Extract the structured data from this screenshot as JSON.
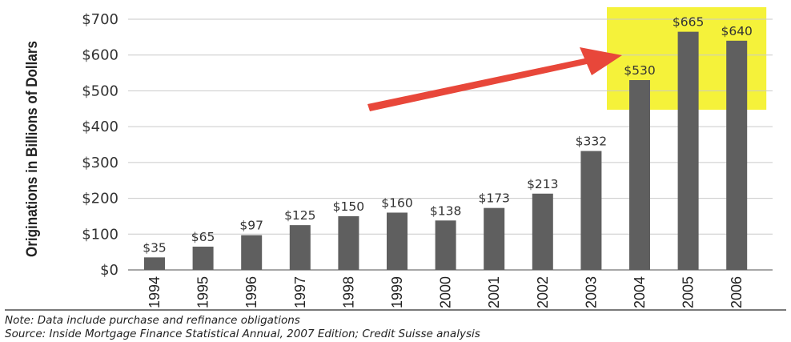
{
  "chart_data": {
    "type": "bar",
    "ylabel": "Originations in Billions of Dollars",
    "categories": [
      "1994",
      "1995",
      "1996",
      "1997",
      "1998",
      "1999",
      "2000",
      "2001",
      "2002",
      "2003",
      "2004",
      "2005",
      "2006"
    ],
    "values": [
      35,
      65,
      97,
      125,
      150,
      160,
      138,
      173,
      213,
      332,
      530,
      665,
      640
    ],
    "data_labels": [
      "$35",
      "$65",
      "$97",
      "$125",
      "$150",
      "$160",
      "$138",
      "$173",
      "$213",
      "$332",
      "$530",
      "$665",
      "$640"
    ],
    "ylim": [
      0,
      700
    ],
    "yticks": [
      0,
      100,
      200,
      300,
      400,
      500,
      600,
      700
    ],
    "ytick_labels": [
      "$0",
      "$100",
      "$200",
      "$300",
      "$400",
      "$500",
      "$600",
      "$700"
    ],
    "grid": true,
    "bar_color": "#5f5f5f",
    "highlight": {
      "categories": [
        "2004",
        "2005",
        "2006"
      ],
      "color": "#f5f23a"
    },
    "arrow_color": "#e8473a"
  },
  "notes": {
    "note": "Note: Data include purchase and refinance obligations",
    "source": "Source: Inside Mortgage Finance Statistical Annual, 2007 Edition; Credit Suisse analysis"
  }
}
